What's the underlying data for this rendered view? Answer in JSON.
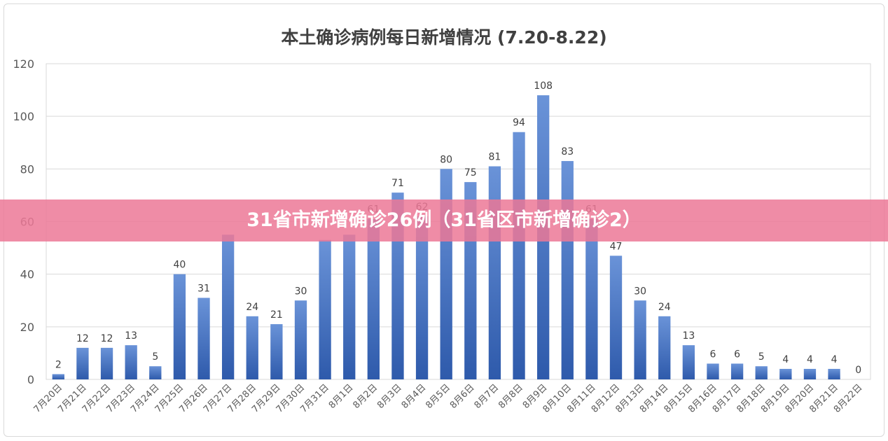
{
  "chart_data": {
    "type": "bar",
    "title": "本土确诊病例每日新增情况 (7.20-8.22)",
    "categories": [
      "7月20日",
      "7月21日",
      "7月22日",
      "7月23日",
      "7月24日",
      "7月25日",
      "7月26日",
      "7月27日",
      "7月28日",
      "7月29日",
      "7月30日",
      "7月31日",
      "8月1日",
      "8月2日",
      "8月3日",
      "8月4日",
      "8月5日",
      "8月6日",
      "8月7日",
      "8月8日",
      "8月9日",
      "8月10日",
      "8月11日",
      "8月12日",
      "8月13日",
      "8月14日",
      "8月15日",
      "8月16日",
      "8月17日",
      "8月18日",
      "8月19日",
      "8月20日",
      "8月21日",
      "8月22日"
    ],
    "values": [
      2,
      12,
      12,
      13,
      5,
      40,
      31,
      55,
      24,
      21,
      30,
      53,
      55,
      61,
      71,
      62,
      80,
      75,
      81,
      94,
      108,
      83,
      61,
      47,
      30,
      24,
      13,
      6,
      6,
      5,
      4,
      4,
      4,
      0
    ],
    "data_labels": [
      "2",
      "12",
      "12",
      "13",
      "5",
      "40",
      "31",
      "",
      "24",
      "21",
      "30",
      "",
      "",
      "61",
      "71",
      "62",
      "80",
      "75",
      "81",
      "94",
      "108",
      "83",
      "61",
      "47",
      "30",
      "24",
      "13",
      "6",
      "6",
      "5",
      "4",
      "4",
      "4",
      "0"
    ],
    "ylim": [
      0,
      120
    ],
    "yticks": [
      0,
      20,
      40,
      60,
      80,
      100,
      120
    ],
    "grid": true,
    "bar_color": "#4472c4",
    "bar_color_dark": "#2e5aab"
  },
  "banner": {
    "text": "31省市新增确诊26例（31省区市新增确诊2）",
    "color": "#ec7896"
  }
}
